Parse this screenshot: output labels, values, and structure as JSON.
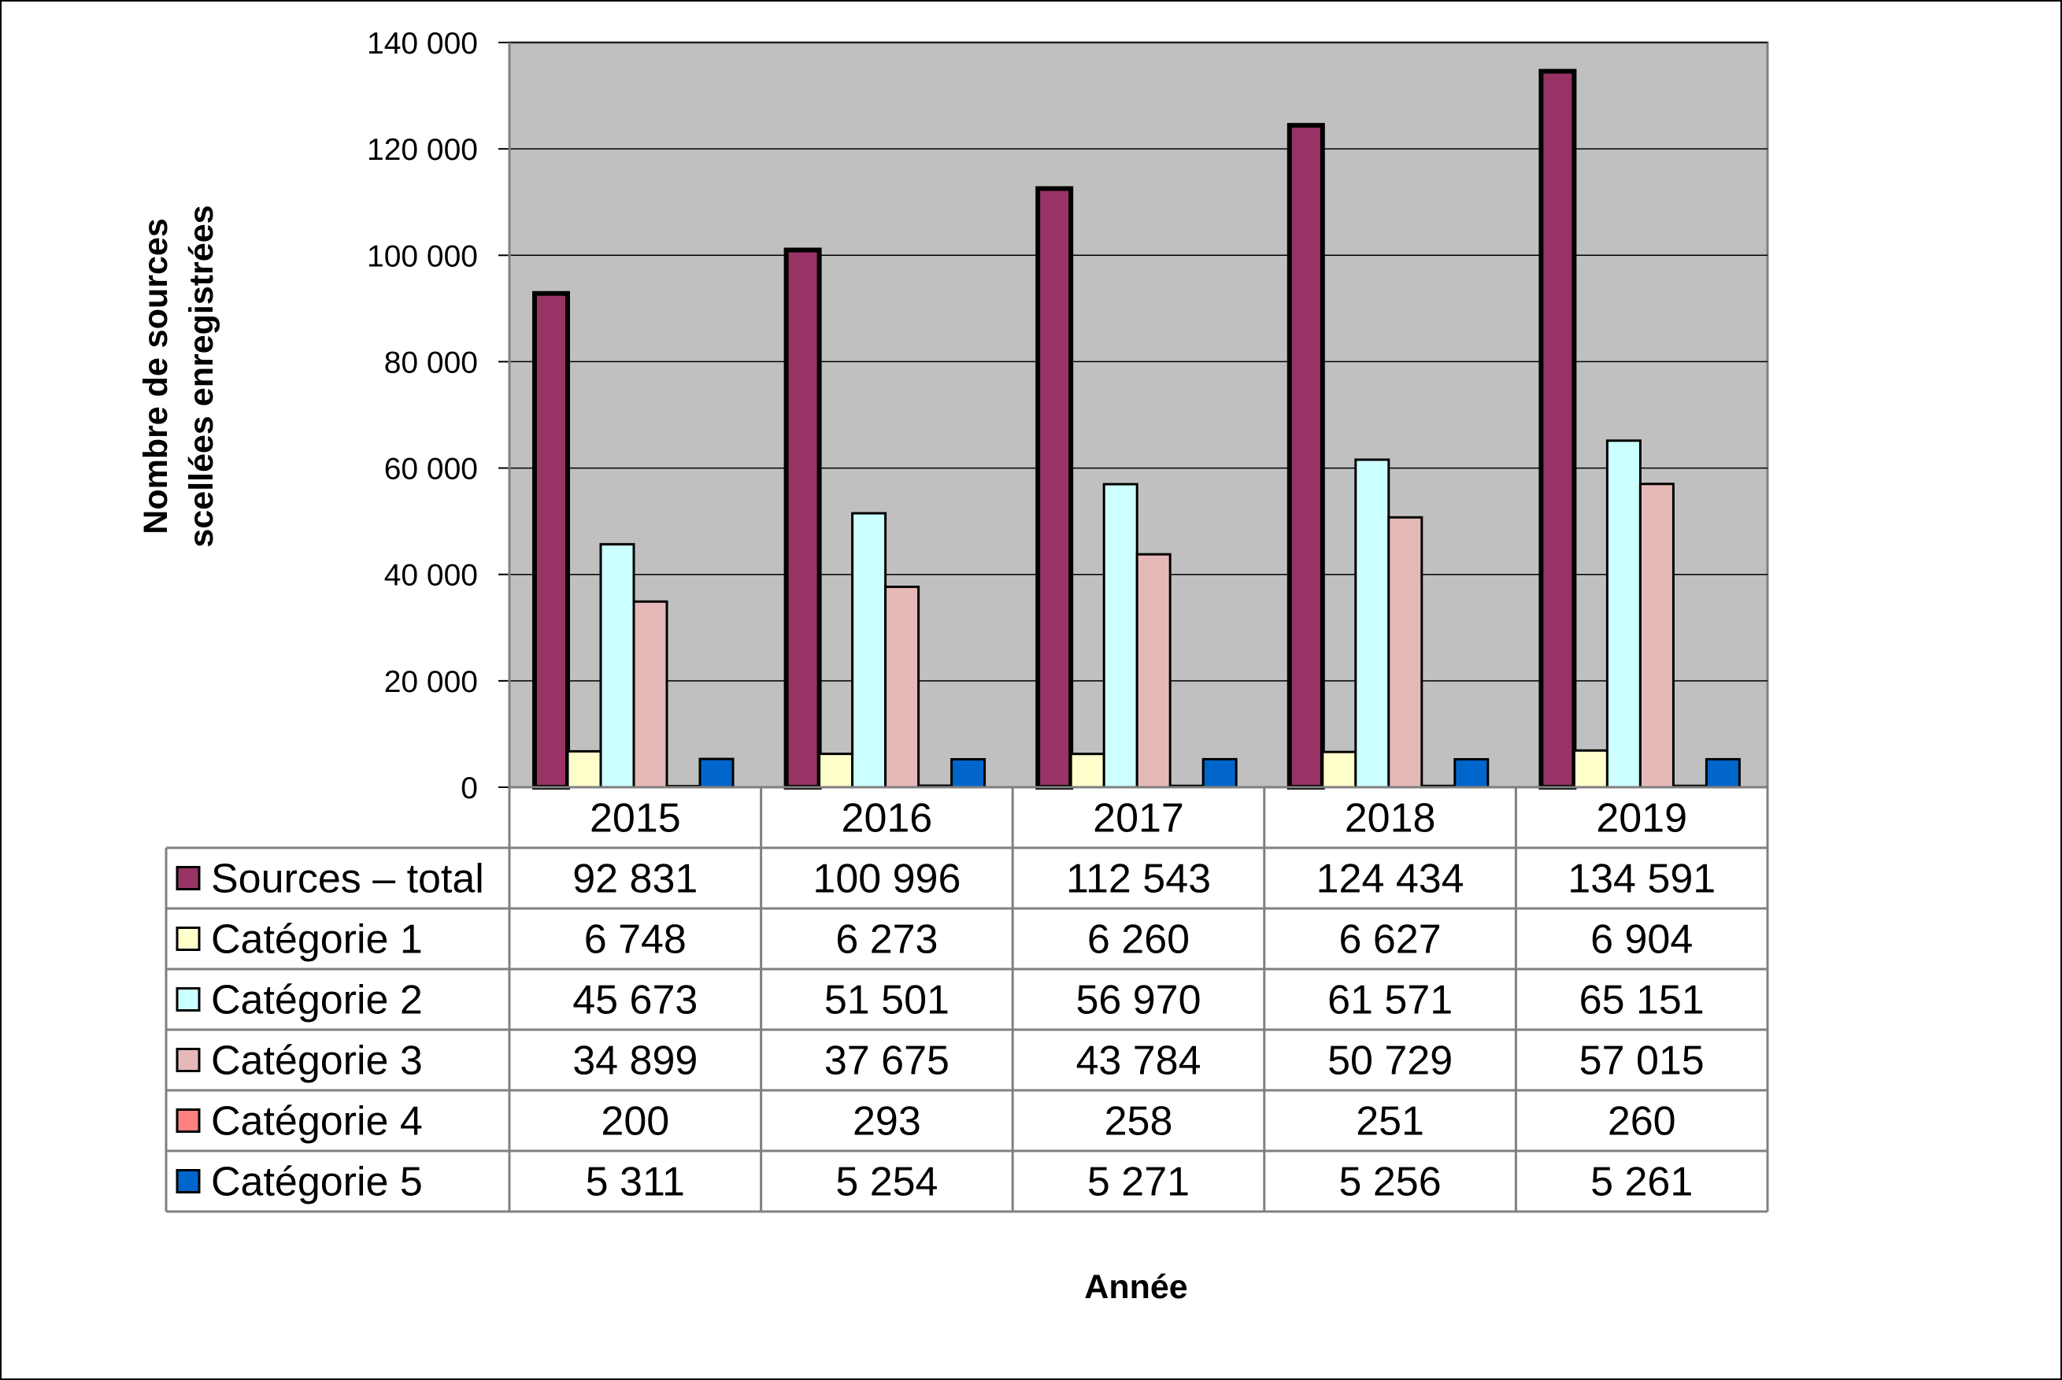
{
  "chart_data": {
    "type": "bar",
    "categories": [
      "2015",
      "2016",
      "2017",
      "2018",
      "2019"
    ],
    "series": [
      {
        "name": "Sources – total",
        "values": [
          92831,
          100996,
          112543,
          124434,
          134591
        ],
        "color": "#993366",
        "display": [
          "92 831",
          "100 996",
          "112 543",
          "124 434",
          "134 591"
        ]
      },
      {
        "name": "Catégorie 1",
        "values": [
          6748,
          6273,
          6260,
          6627,
          6904
        ],
        "color": "#FFFFCC",
        "display": [
          "6 748",
          "6 273",
          "6 260",
          "6 627",
          "6 904"
        ]
      },
      {
        "name": "Catégorie 2",
        "values": [
          45673,
          51501,
          56970,
          61571,
          65151
        ],
        "color": "#CCFFFF",
        "display": [
          "45 673",
          "51 501",
          "56 970",
          "61 571",
          "65 151"
        ]
      },
      {
        "name": "Catégorie 3",
        "values": [
          34899,
          37675,
          43784,
          50729,
          57015
        ],
        "color": "#E6B9B8",
        "display": [
          "34 899",
          "37 675",
          "43 784",
          "50 729",
          "57 015"
        ]
      },
      {
        "name": "Catégorie 4",
        "values": [
          200,
          293,
          258,
          251,
          260
        ],
        "color": "#FF8080",
        "display": [
          "200",
          "293",
          "258",
          "251",
          "260"
        ]
      },
      {
        "name": "Catégorie 5",
        "values": [
          5311,
          5254,
          5271,
          5256,
          5261
        ],
        "color": "#0066CC",
        "display": [
          "5 311",
          "5 254",
          "5 271",
          "5 256",
          "5 261"
        ]
      }
    ],
    "ylabel_line1": "Nombre de sources",
    "ylabel_line2": "scellées enregistrées",
    "xlabel": "Année",
    "ylim": [
      0,
      140000
    ],
    "yticks": [
      0,
      20000,
      40000,
      60000,
      80000,
      100000,
      120000,
      140000
    ],
    "ytick_labels": [
      "0",
      "20 000",
      "40 000",
      "60 000",
      "80 000",
      "100 000",
      "120 000",
      "140 000"
    ],
    "plot_background": "#C0C0C0",
    "grid": true,
    "legend": "data-table"
  }
}
